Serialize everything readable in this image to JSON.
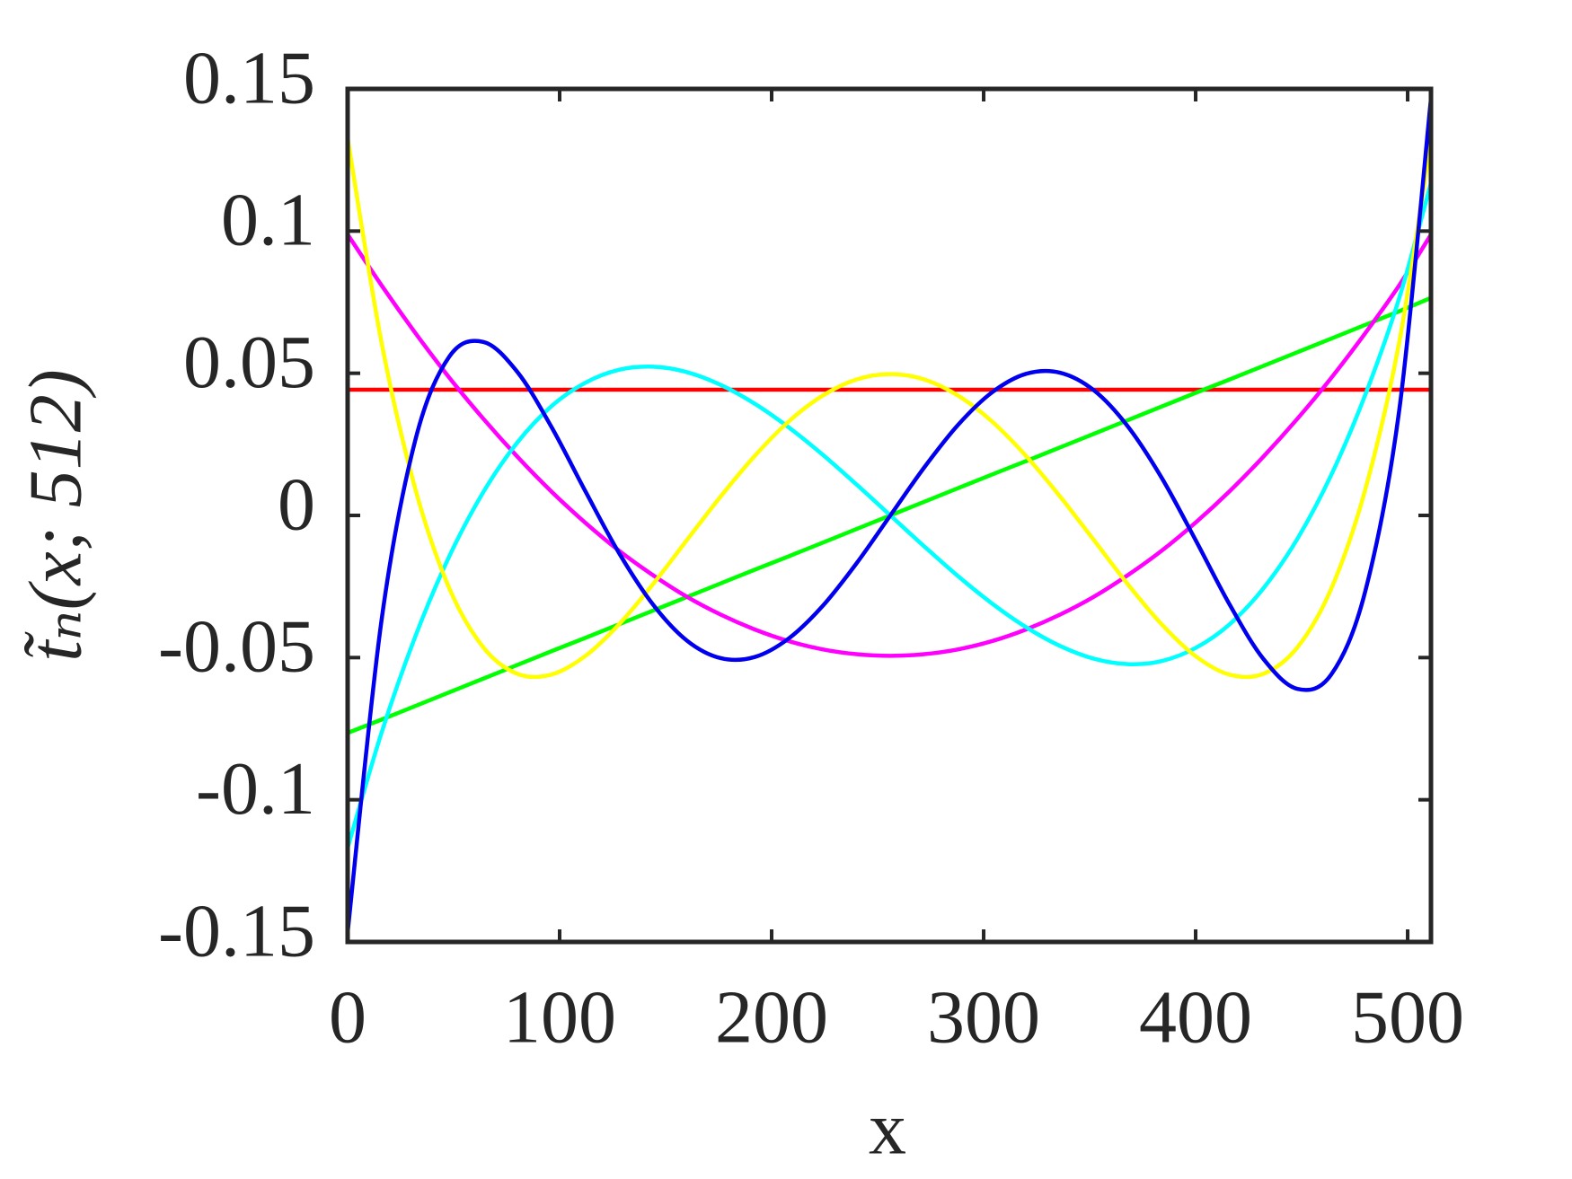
{
  "chart_data": {
    "type": "line",
    "xlabel": "x",
    "ylabel": "t̃ₙ(x; 512)",
    "x": [
      0,
      16,
      32,
      48,
      64,
      80,
      96,
      112,
      128,
      144,
      160,
      176,
      192,
      208,
      224,
      240,
      256,
      272,
      288,
      304,
      320,
      336,
      352,
      368,
      384,
      400,
      416,
      432,
      448,
      464,
      480,
      496,
      511
    ],
    "series": [
      {
        "color": "#ff0000",
        "values": [
          0.0442,
          0.0442,
          0.0442,
          0.0442,
          0.0442,
          0.0442,
          0.0442,
          0.0442,
          0.0442,
          0.0442,
          0.0442,
          0.0442,
          0.0442,
          0.0442,
          0.0442,
          0.0442,
          0.0442,
          0.0442,
          0.0442,
          0.0442,
          0.0442,
          0.0442,
          0.0442,
          0.0442,
          0.0442,
          0.0442,
          0.0442,
          0.0442,
          0.0442,
          0.0442,
          0.0442,
          0.0442,
          0.0442
        ]
      },
      {
        "color": "#00ff00",
        "values": [
          -0.0765,
          -0.0718,
          -0.067,
          -0.0622,
          -0.0574,
          -0.0526,
          -0.0478,
          -0.0431,
          -0.0383,
          -0.0335,
          -0.0287,
          -0.0239,
          -0.0191,
          -0.0144,
          -0.0096,
          -0.0048,
          0,
          0.0048,
          0.0096,
          0.0144,
          0.0191,
          0.0239,
          0.0287,
          0.0335,
          0.0383,
          0.0431,
          0.0478,
          0.0526,
          0.0574,
          0.0622,
          0.067,
          0.0718,
          0.0765
        ]
      },
      {
        "color": "#ff00ff",
        "values": [
          0.0988,
          0.0809,
          0.0641,
          0.0484,
          0.034,
          0.0207,
          0.0085,
          -0.0025,
          -0.0124,
          -0.021,
          -0.0286,
          -0.0349,
          -0.0401,
          -0.0442,
          -0.0471,
          -0.0488,
          -0.0494,
          -0.0488,
          -0.0471,
          -0.0442,
          -0.0401,
          -0.0349,
          -0.0286,
          -0.021,
          -0.0124,
          -0.0025,
          0.0085,
          0.0207,
          0.034,
          0.0484,
          0.0641,
          0.0809,
          0.0988
        ]
      },
      {
        "color": "#00ffff",
        "values": [
          -0.1169,
          -0.0764,
          -0.0424,
          -0.0143,
          0.0082,
          0.0256,
          0.0383,
          0.0466,
          0.0512,
          0.0523,
          0.0504,
          0.0459,
          0.0393,
          0.031,
          0.0214,
          0.0109,
          0,
          -0.0109,
          -0.0214,
          -0.031,
          -0.0393,
          -0.0459,
          -0.0504,
          -0.0523,
          -0.0512,
          -0.0466,
          -0.0383,
          -0.0256,
          -0.0082,
          0.0143,
          0.0424,
          0.0764,
          0.1169
        ]
      },
      {
        "color": "#ffff00",
        "values": [
          0.1326,
          0.0608,
          0.0091,
          -0.0257,
          -0.0464,
          -0.0557,
          -0.056,
          -0.0495,
          -0.0383,
          -0.0242,
          -0.0087,
          0.0067,
          0.0209,
          0.033,
          0.0421,
          0.0478,
          0.0497,
          0.0478,
          0.0421,
          0.033,
          0.0209,
          0.0067,
          -0.0087,
          -0.0242,
          -0.0383,
          -0.0495,
          -0.056,
          -0.0557,
          -0.0464,
          -0.0257,
          0.0091,
          0.0608,
          0.1326
        ]
      },
      {
        "color": "#0000ee",
        "values": [
          -0.1466,
          -0.0368,
          0.0267,
          0.0559,
          0.061,
          0.0505,
          0.0313,
          0.0087,
          -0.0132,
          -0.0313,
          -0.044,
          -0.0502,
          -0.0498,
          -0.0433,
          -0.0319,
          -0.0169,
          0,
          0.0169,
          0.0319,
          0.0433,
          0.0498,
          0.0502,
          0.044,
          0.0313,
          0.0132,
          -0.0087,
          -0.0313,
          -0.0505,
          -0.061,
          -0.0559,
          -0.0267,
          0.0368,
          0.1466
        ]
      }
    ],
    "xlim": [
      0,
      511
    ],
    "xticks": [
      0,
      100,
      200,
      300,
      400,
      500
    ],
    "ylim": [
      -0.15,
      0.15
    ],
    "yticks": [
      -0.15,
      -0.1,
      -0.05,
      0,
      0.05,
      0.1,
      0.15
    ],
    "grid": false
  }
}
